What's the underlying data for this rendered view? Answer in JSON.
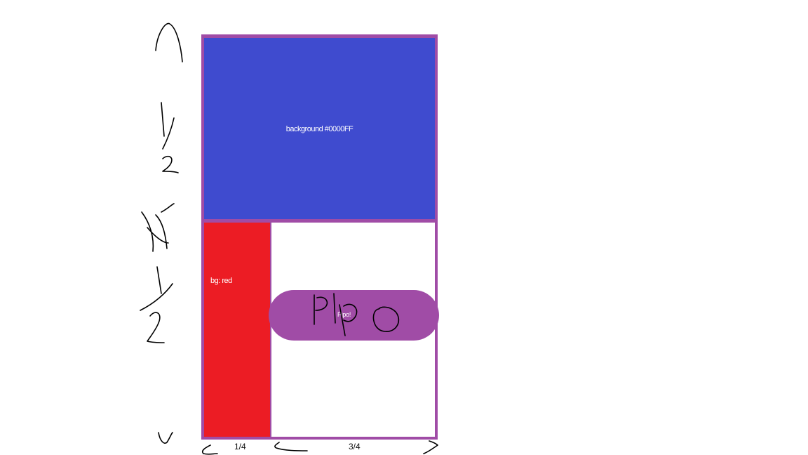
{
  "colors": {
    "frame": "#a04ca6",
    "blue_box": "#3f4bcf",
    "red_box": "#ec1c24",
    "pill": "#a04ca6",
    "ink": "#000000"
  },
  "blue_box": {
    "label": "background #0000FF"
  },
  "red_box": {
    "label": "bg: red"
  },
  "pill": {
    "label": "Pipo!",
    "handwritten_text": "Pipo"
  },
  "dimensions": {
    "width_left": "1/4",
    "width_right": "3/4"
  },
  "handwritten_annotations": {
    "height_top": "1/2",
    "height_bottom": "1/2"
  }
}
